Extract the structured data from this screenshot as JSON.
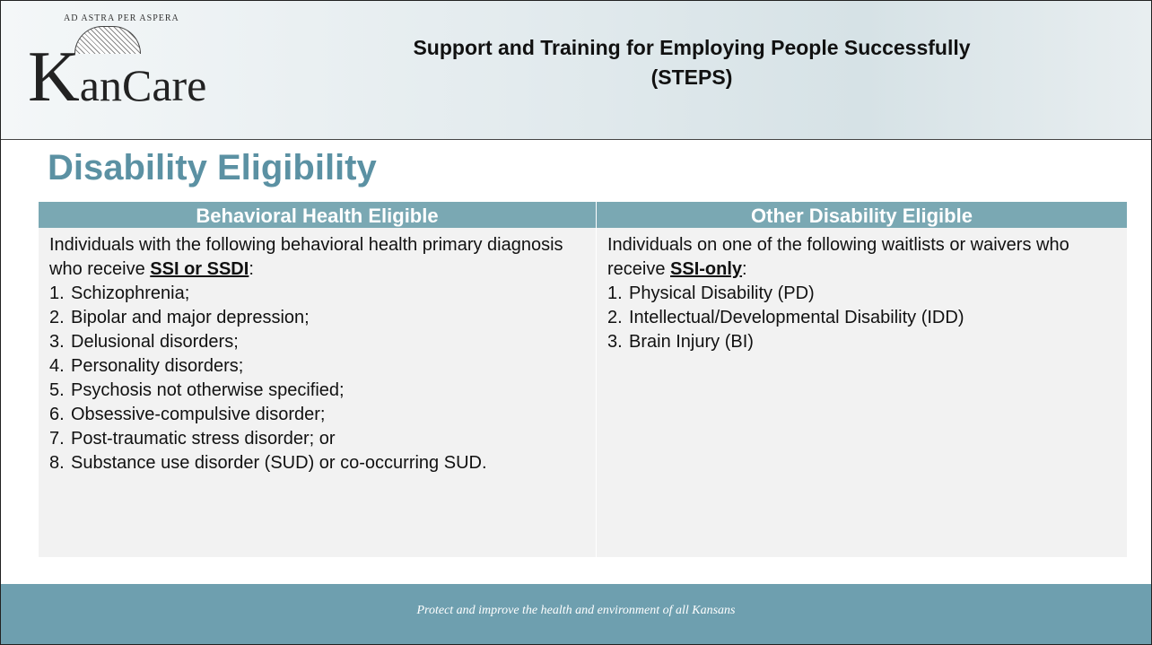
{
  "header": {
    "logo": {
      "motto": "AD ASTRA PER ASPERA",
      "initial": "K",
      "rest": "anCare"
    },
    "title": "Support and Training for Employing People Successfully",
    "subtitle": "(STEPS)"
  },
  "heading": "Disability Eligibility",
  "table": {
    "columns": [
      {
        "header": "Behavioral Health Eligible",
        "intro": "Individuals with the following behavioral health primary diagnosis who receive ",
        "emphasis": "SSI or SSDI",
        "intro_end": ":",
        "items": [
          {
            "number": "1.",
            "text": "Schizophrenia;"
          },
          {
            "number": "2.",
            "text": "Bipolar and major depression;"
          },
          {
            "number": "3.",
            "text": "Delusional disorders;"
          },
          {
            "number": "4.",
            "text": "Personality disorders;"
          },
          {
            "number": "5.",
            "text": "Psychosis not otherwise specified;"
          },
          {
            "number": "6.",
            "text": "Obsessive-compulsive disorder;"
          },
          {
            "number": "7.",
            "text": "Post-traumatic stress disorder; or"
          },
          {
            "number": "8.",
            "text": "Substance use disorder (SUD) or co-occurring SUD."
          }
        ]
      },
      {
        "header": "Other Disability Eligible",
        "intro": "Individuals on one of the following waitlists or waivers who receive ",
        "emphasis": "SSI-only",
        "intro_end": ":",
        "items": [
          {
            "number": "1.",
            "text": "Physical Disability (PD)"
          },
          {
            "number": "2.",
            "text": "Intellectual/Developmental Disability (IDD)"
          },
          {
            "number": "3.",
            "text": "Brain Injury (BI)"
          }
        ]
      }
    ]
  },
  "footer": "Protect and improve the health and environment of all Kansans"
}
